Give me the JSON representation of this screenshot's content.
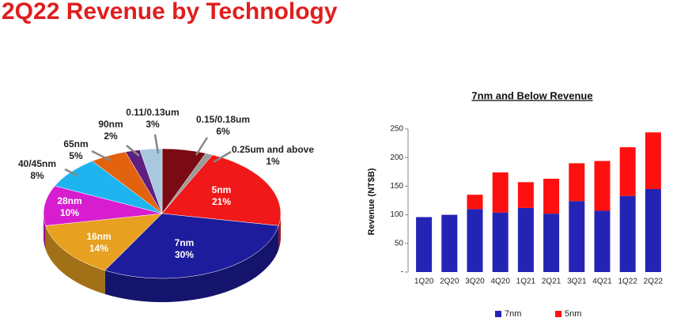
{
  "title": "2Q22 Revenue by Technology",
  "chart_data": [
    {
      "type": "pie",
      "categories": [
        "0.15/0.18um",
        "0.25um and above",
        "5nm",
        "7nm",
        "16nm",
        "28nm",
        "40/45nm",
        "65nm",
        "90nm",
        "0.11/0.13um"
      ],
      "values": [
        6,
        1,
        21,
        30,
        14,
        10,
        8,
        5,
        2,
        3
      ],
      "value_labels": [
        "6%",
        "1%",
        "21%",
        "30%",
        "14%",
        "10%",
        "8%",
        "5%",
        "2%",
        "3%"
      ],
      "colors": [
        "#7a0a14",
        "#9a9a9a",
        "#f01818",
        "#1c1c9c",
        "#e8a020",
        "#d81cd0",
        "#1eb4f0",
        "#e2620e",
        "#5e2080",
        "#a8c8e0"
      ]
    },
    {
      "type": "bar",
      "title": "7nm and Below Revenue",
      "y_label": "Revenue (NT$B)",
      "categories": [
        "1Q20",
        "2Q20",
        "3Q20",
        "4Q20",
        "1Q21",
        "2Q21",
        "3Q21",
        "4Q21",
        "1Q22",
        "2Q22"
      ],
      "stacked": true,
      "series": [
        {
          "name": "7nm",
          "color": "#2424b4",
          "values": [
            96,
            100,
            110,
            104,
            112,
            102,
            124,
            107,
            133,
            145
          ]
        },
        {
          "name": "5nm",
          "color": "#ff1010",
          "values": [
            null,
            null,
            25,
            70,
            45,
            61,
            66,
            87,
            85,
            99
          ]
        }
      ],
      "ylim": [
        0,
        250
      ],
      "yticks": [
        {
          "value": 0,
          "label": "-"
        },
        50,
        100,
        150,
        200,
        250
      ],
      "legend": "bottom"
    }
  ]
}
